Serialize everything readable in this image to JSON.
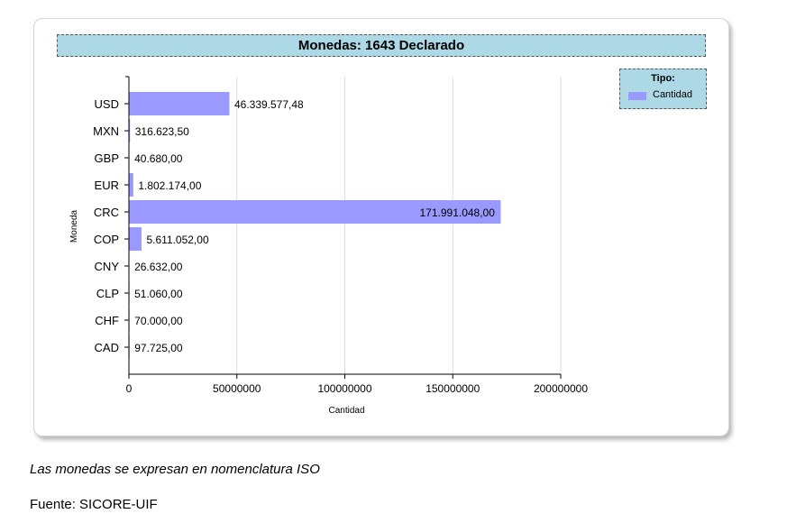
{
  "chart_data": {
    "type": "bar",
    "orientation": "horizontal",
    "title": "Monedas: 1643 Declarado",
    "xlabel": "Cantidad",
    "ylabel": "Moneda",
    "legend_title": "Tipo:",
    "legend_position": "top-right",
    "categories": [
      "USD",
      "MXN",
      "GBP",
      "EUR",
      "CRC",
      "COP",
      "CNY",
      "CLP",
      "CHF",
      "CAD"
    ],
    "series": [
      {
        "name": "Cantidad",
        "color": "#9999ff",
        "values": [
          46339577.48,
          316623.5,
          40680.0,
          1802174.0,
          171991048.0,
          5611052.0,
          26632.0,
          51060.0,
          70000.0,
          97725.0
        ],
        "labels": [
          "46.339.577,48",
          "316.623,50",
          "40.680,00",
          "1.802.174,00",
          "171.991.048,00",
          "5.611.052,00",
          "26.632,00",
          "51.060,00",
          "70.000,00",
          "97.725,00"
        ]
      }
    ],
    "xlim": [
      0,
      200000000
    ],
    "xticks": [
      0,
      50000000,
      100000000,
      150000000,
      200000000
    ],
    "xtick_labels": [
      "0",
      "50000000",
      "100000000",
      "150000000",
      "200000000"
    ],
    "grid": true
  },
  "caption": "Las monedas se expresan en nomenclatura ISO",
  "source": "Fuente: SICORE-UIF"
}
